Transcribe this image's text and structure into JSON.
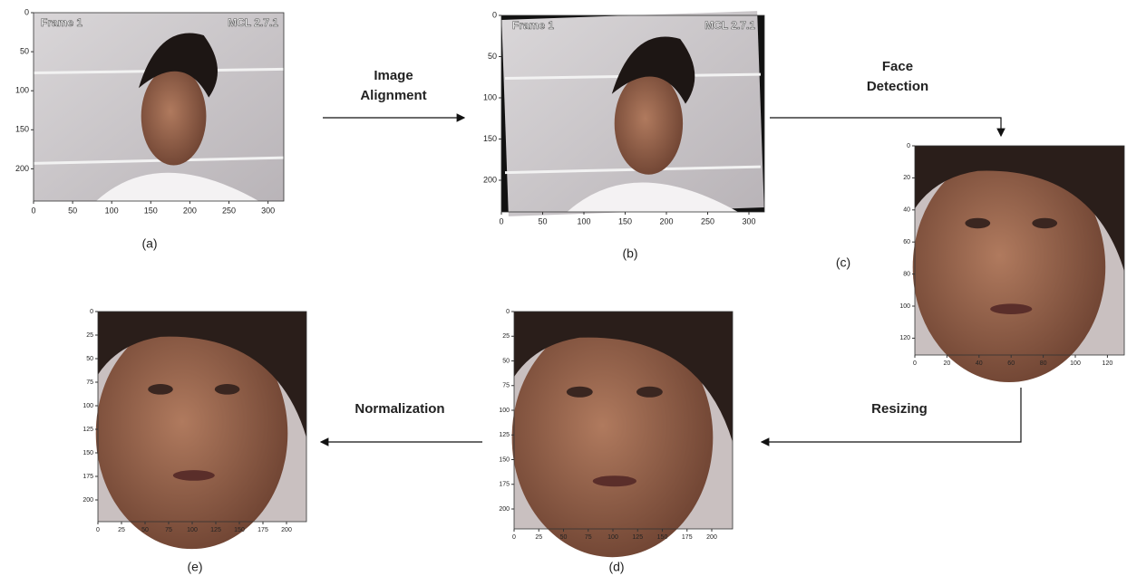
{
  "panels": [
    {
      "label": "(a)",
      "overlay": [
        "Frame 1",
        "MCL 2.7.1"
      ],
      "xticks": [
        0,
        50,
        100,
        150,
        200,
        250,
        300
      ],
      "yticks": [
        0,
        50,
        100,
        150,
        200
      ]
    },
    {
      "label": "(b)",
      "overlay": [
        "Frame 1",
        "MCL 2.7.1"
      ],
      "xticks": [
        0,
        50,
        100,
        150,
        200,
        250,
        300
      ],
      "yticks": [
        0,
        50,
        100,
        150,
        200
      ]
    },
    {
      "label": "(c)",
      "xticks": [
        0,
        20,
        40,
        60,
        80,
        100,
        120
      ],
      "yticks": [
        0,
        20,
        40,
        60,
        80,
        100,
        120
      ]
    },
    {
      "label": "(d)",
      "xticks": [
        0,
        25,
        50,
        75,
        100,
        125,
        150,
        175,
        200
      ],
      "yticks": [
        0,
        25,
        50,
        75,
        100,
        125,
        150,
        175,
        200
      ]
    },
    {
      "label": "(e)",
      "xticks": [
        0,
        25,
        50,
        75,
        100,
        125,
        150,
        175,
        200
      ],
      "yticks": [
        0,
        25,
        50,
        75,
        100,
        125,
        150,
        175,
        200
      ]
    }
  ],
  "steps": [
    {
      "lines": [
        "Image",
        "Alignment"
      ]
    },
    {
      "lines": [
        "Face",
        "Detection"
      ]
    },
    {
      "lines": [
        "Resizing"
      ]
    },
    {
      "lines": [
        "Normalization"
      ]
    }
  ]
}
